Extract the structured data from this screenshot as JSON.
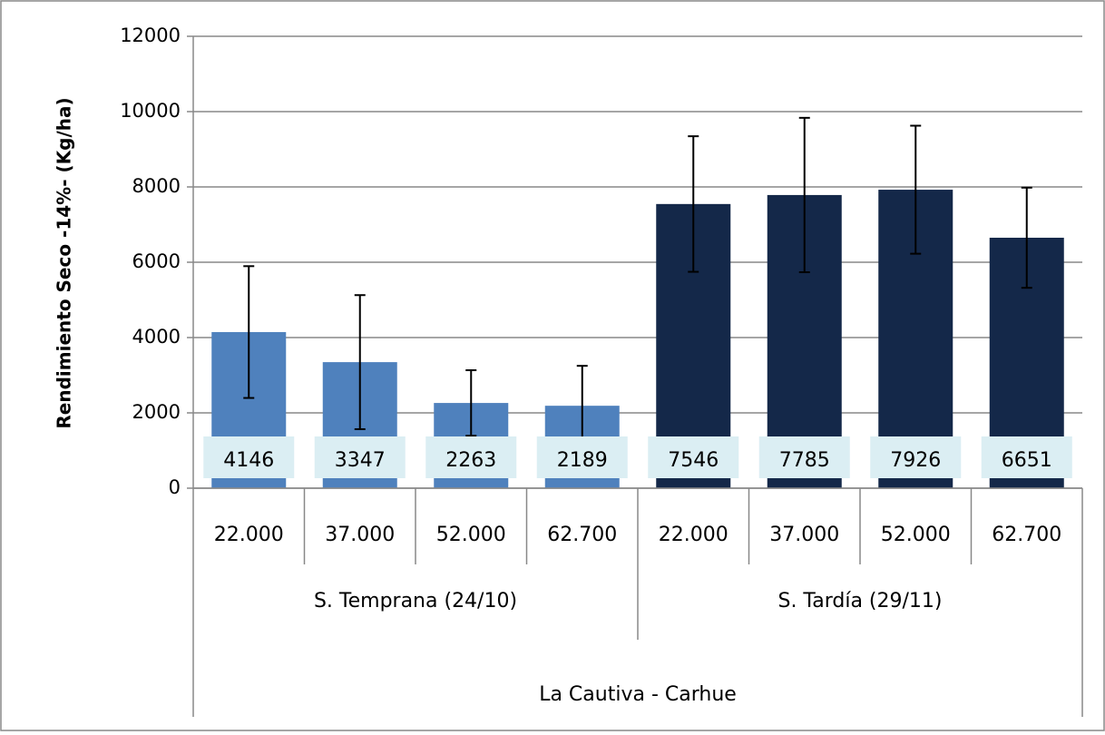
{
  "chart_data": {
    "type": "bar",
    "y_label": "Rendimiento Seco -14%- (Kg/ha)",
    "ylim": [
      0,
      12000
    ],
    "yticks": [
      0,
      2000,
      4000,
      6000,
      8000,
      10000,
      12000
    ],
    "grid": true,
    "outer_category": "La Cautiva - Carhue",
    "groups": [
      {
        "name": "S. Temprana (24/10)",
        "color": "#4f81bd",
        "categories": [
          "22.000",
          "37.000",
          "52.000",
          "62.700"
        ],
        "values": [
          4146,
          3347,
          2263,
          2189
        ],
        "errors": [
          1750,
          1780,
          870,
          1060
        ]
      },
      {
        "name": "S. Tardía (29/11)",
        "color": "#142849",
        "categories": [
          "22.000",
          "37.000",
          "52.000",
          "62.700"
        ],
        "values": [
          7546,
          7785,
          7926,
          6651
        ],
        "errors": [
          1800,
          2050,
          1700,
          1330
        ]
      }
    ]
  }
}
